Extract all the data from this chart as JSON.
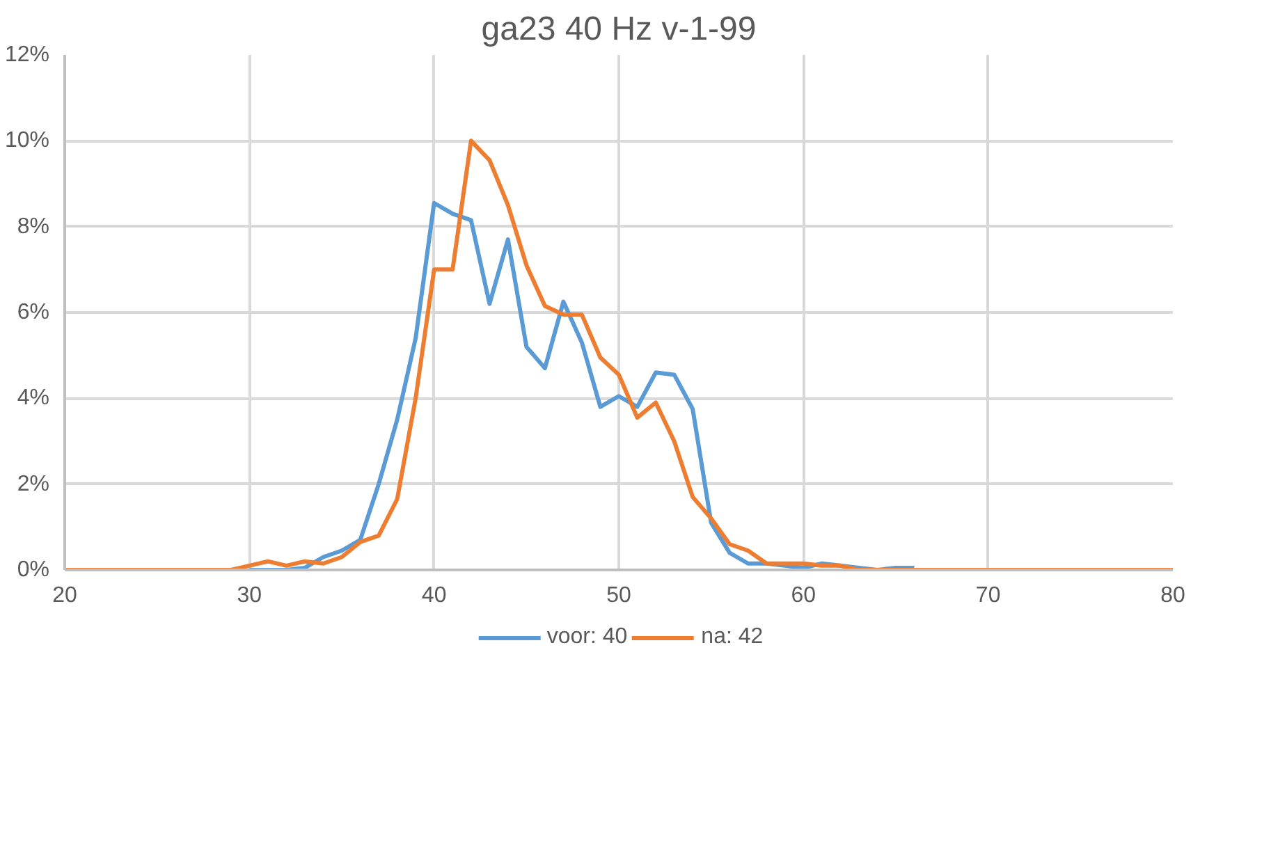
{
  "chart_data": {
    "type": "line",
    "title": "ga23 40 Hz v-1-99",
    "x": [
      20,
      21,
      22,
      23,
      24,
      25,
      26,
      27,
      28,
      29,
      30,
      31,
      32,
      33,
      34,
      35,
      36,
      37,
      38,
      39,
      40,
      41,
      42,
      43,
      44,
      45,
      46,
      47,
      48,
      49,
      50,
      51,
      52,
      53,
      54,
      55,
      56,
      57,
      58,
      59,
      60,
      61,
      62,
      63,
      64,
      65,
      66,
      67,
      68,
      69,
      70,
      71,
      72,
      73,
      74,
      75,
      76,
      77,
      78,
      79,
      80
    ],
    "series": [
      {
        "name": "voor: 40",
        "color": "#5b9bd5",
        "x": [
          30,
          31,
          32,
          33,
          34,
          35,
          36,
          37,
          38,
          39,
          40,
          41,
          42,
          43,
          44,
          45,
          46,
          47,
          48,
          49,
          50,
          51,
          52,
          53,
          54,
          55,
          56,
          57,
          58,
          59,
          60,
          61,
          62,
          63,
          64,
          65,
          66
        ],
        "values": [
          0,
          0,
          0,
          0.05,
          0.3,
          0.45,
          0.7,
          2.0,
          3.5,
          5.4,
          8.55,
          8.3,
          8.15,
          6.2,
          7.7,
          5.2,
          4.7,
          6.25,
          5.3,
          3.8,
          4.05,
          3.8,
          4.6,
          4.55,
          3.75,
          1.1,
          0.4,
          0.15,
          0.15,
          0.1,
          0.05,
          0.15,
          0.1,
          0.05,
          0,
          0.05,
          0.05
        ]
      },
      {
        "name": "na: 42",
        "color": "#ed7d31",
        "values": [
          0,
          0,
          0,
          0,
          0,
          0,
          0,
          0,
          0,
          0,
          0.1,
          0.2,
          0.1,
          0.2,
          0.15,
          0.3,
          0.65,
          0.8,
          1.65,
          4.0,
          7.0,
          7.0,
          10.0,
          9.55,
          8.5,
          7.1,
          6.15,
          5.95,
          5.95,
          4.95,
          4.55,
          3.55,
          3.9,
          3.0,
          1.7,
          1.2,
          0.6,
          0.45,
          0.15,
          0.15,
          0.15,
          0.1,
          0.1,
          0,
          0,
          0,
          0,
          0,
          0,
          0,
          0,
          0,
          0,
          0,
          0,
          0,
          0,
          0,
          0,
          0,
          0
        ]
      }
    ],
    "xlim": [
      20,
      80
    ],
    "xticks": [
      20,
      30,
      40,
      50,
      60,
      70,
      80
    ],
    "ylim": [
      0,
      12
    ],
    "yticks": [
      {
        "value": 0,
        "label": "0%"
      },
      {
        "value": 2,
        "label": "2%"
      },
      {
        "value": 4,
        "label": "4%"
      },
      {
        "value": 6,
        "label": "6%"
      },
      {
        "value": 8,
        "label": "8%"
      },
      {
        "value": 10,
        "label": "10%"
      },
      {
        "value": 12,
        "label": "12%"
      }
    ],
    "grid": true,
    "legend": "bottom",
    "marker": "none",
    "line_style": "solid"
  }
}
